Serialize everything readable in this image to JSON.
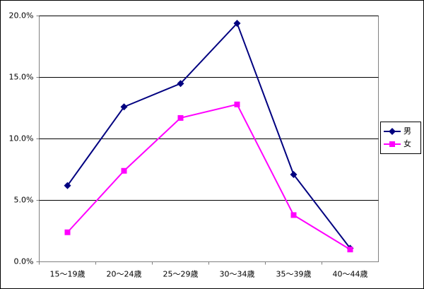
{
  "chart_data": {
    "type": "line",
    "categories": [
      "15～19歳",
      "20～24歳",
      "25～29歳",
      "30～34歳",
      "35～39歳",
      "40～44歳"
    ],
    "series": [
      {
        "name": "男",
        "color": "#000080",
        "marker": "diamond",
        "values": [
          6.2,
          12.6,
          14.5,
          19.4,
          7.1,
          1.1
        ]
      },
      {
        "name": "女",
        "color": "#ff00ff",
        "marker": "square",
        "values": [
          2.4,
          7.4,
          11.7,
          12.8,
          3.8,
          1.0
        ]
      }
    ],
    "ylim": [
      0,
      20
    ],
    "yticks": [
      {
        "value": 0,
        "label": "0.0%"
      },
      {
        "value": 5,
        "label": "5.0%"
      },
      {
        "value": 10,
        "label": "10.0%"
      },
      {
        "value": 15,
        "label": "15.0%"
      },
      {
        "value": 20,
        "label": "20.0%"
      }
    ],
    "grid": true,
    "legend": "right"
  }
}
